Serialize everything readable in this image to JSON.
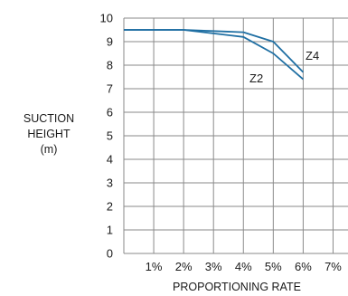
{
  "chart_data": {
    "type": "line",
    "xlabel": "PROPORTIONING RATE",
    "ylabel_lines": [
      "SUCTION",
      "HEIGHT",
      "(m)"
    ],
    "x_ticks": [
      1,
      2,
      3,
      4,
      5,
      6,
      7
    ],
    "x_tick_labels": [
      "1%",
      "2%",
      "3%",
      "4%",
      "5%",
      "6%",
      "7%"
    ],
    "y_ticks": [
      0,
      1,
      2,
      3,
      4,
      5,
      6,
      7,
      8,
      9,
      10
    ],
    "y_tick_labels": [
      "0",
      "1",
      "2",
      "3",
      "4",
      "5",
      "6",
      "7",
      "8",
      "9",
      "10"
    ],
    "xlim": [
      0,
      7.5
    ],
    "ylim": [
      0,
      10
    ],
    "grid": true,
    "line_color": "#1f6fa3",
    "grid_color": "#8a8a8a",
    "series": [
      {
        "name": "Z4",
        "x": [
          0,
          2,
          4,
          5,
          6
        ],
        "y": [
          9.5,
          9.5,
          9.4,
          9.0,
          7.7
        ]
      },
      {
        "name": "Z2",
        "x": [
          0,
          2,
          4,
          5,
          6
        ],
        "y": [
          9.5,
          9.5,
          9.2,
          8.5,
          7.4
        ]
      }
    ]
  }
}
